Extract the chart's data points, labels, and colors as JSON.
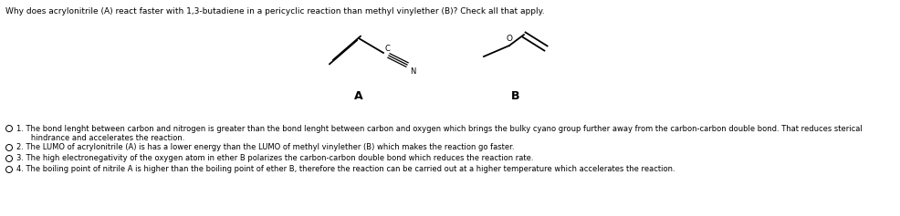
{
  "title": "Why does acrylonitrile (A) react faster with 1,3-butadiene in a pericyclic reaction than methyl vinylether (B)? Check all that apply.",
  "option1_line1": "1. The bond lenght between carbon and nitrogen is greater than the bond lenght between carbon and oxygen which brings the bulky cyano group further away from the carbon-carbon double bond. That reduces sterical",
  "option1_line2": "   hindrance and accelerates the reaction.",
  "option2": "2. The LUMO of acrylonitrile (A) is has a lower energy than the LUMO of methyl vinylether (B) which makes the reaction go faster.",
  "option3": "3. The high electronegativity of the oxygen atom in ether B polarizes the carbon-carbon double bond which reduces the reaction rate.",
  "option4": "4. The boiling point of nitrile A is higher than the boiling point of ether B, therefore the reaction can be carried out at a higher temperature which accelerates the reaction.",
  "bg_color": "#ffffff",
  "text_color": "#000000",
  "font_size_title": 6.5,
  "font_size_options": 6.0
}
